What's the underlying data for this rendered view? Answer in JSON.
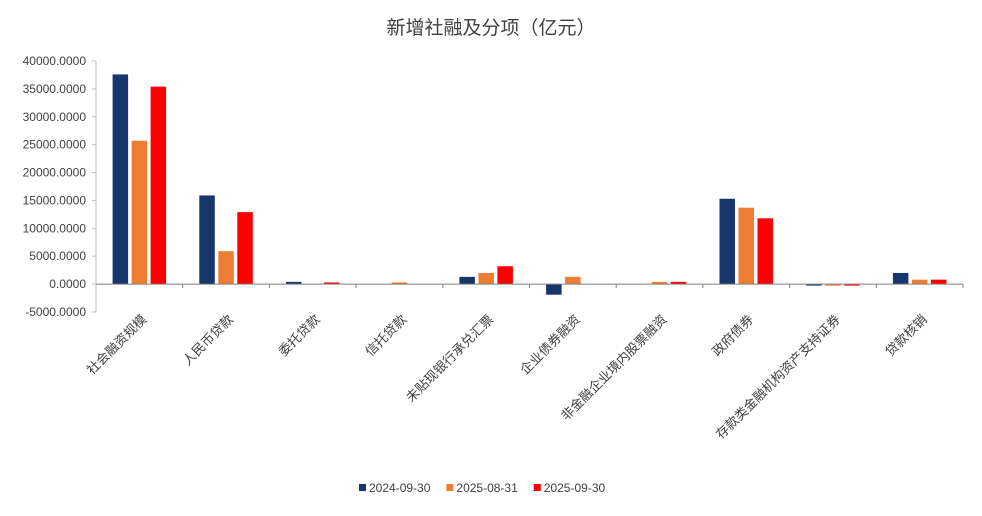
{
  "chart_data": {
    "type": "bar",
    "title": "新增社融及分项（亿元）",
    "xlabel": "",
    "ylabel": "",
    "ylim": [
      -5000,
      40000
    ],
    "yticks": [
      -5000,
      0,
      5000,
      10000,
      15000,
      20000,
      25000,
      30000,
      35000,
      40000
    ],
    "ytick_labels": [
      "-5000.0000",
      "0.0000",
      "5000.0000",
      "10000.0000",
      "15000.0000",
      "20000.0000",
      "25000.0000",
      "30000.0000",
      "35000.0000",
      "40000.0000"
    ],
    "grid": false,
    "legend_position": "bottom",
    "categories": [
      "社会融资规模",
      "人民币贷款",
      "委托贷款",
      "信托贷款",
      "未贴现银行承兑汇票",
      "企业债券融资",
      "非金融企业境内股票融资",
      "政府债券",
      "存款类金融机构资产支持证券",
      "贷款核销"
    ],
    "series": [
      {
        "name": "2024-09-30",
        "color": "#17366B",
        "values": [
          37600,
          15900,
          400,
          0,
          1300,
          -1900,
          0,
          15300,
          -100,
          2000
        ]
      },
      {
        "name": "2025-08-31",
        "color": "#ED7D31",
        "values": [
          25700,
          5900,
          0,
          300,
          2000,
          1300,
          400,
          13700,
          -100,
          800
        ]
      },
      {
        "name": "2025-09-30",
        "color": "#FF0000",
        "values": [
          35400,
          12900,
          300,
          0,
          3200,
          0,
          400,
          11800,
          -100,
          800
        ]
      }
    ]
  }
}
